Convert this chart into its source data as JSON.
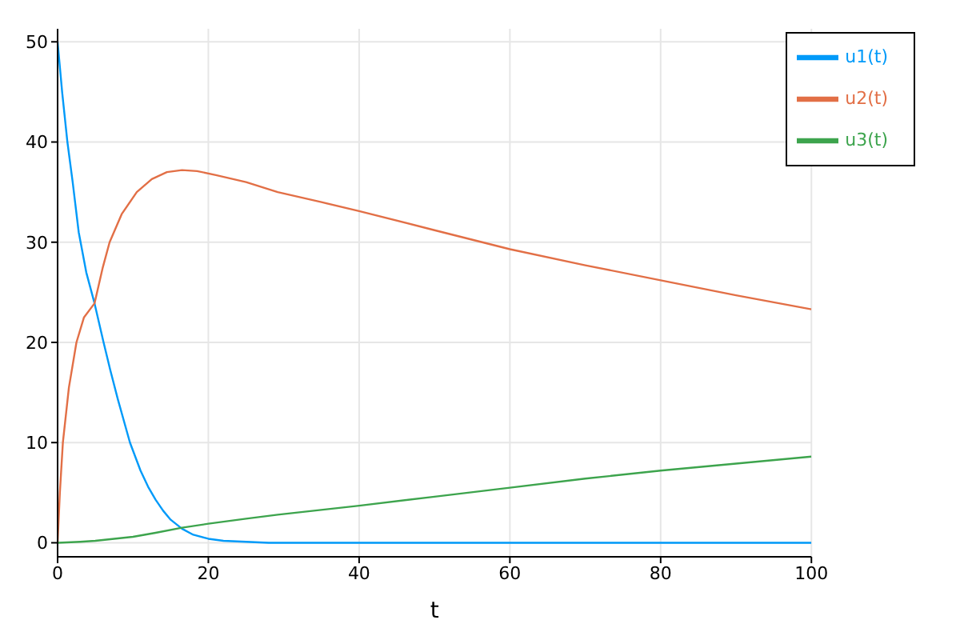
{
  "chart_data": {
    "type": "line",
    "xlabel": "t",
    "xlim": [
      0,
      100
    ],
    "xticks": [
      0,
      20,
      40,
      60,
      80,
      100
    ],
    "ylim": [
      -1.4,
      51.3
    ],
    "yticks": [
      0,
      10,
      20,
      30,
      40,
      50
    ],
    "grid": true,
    "legend": "top right",
    "marker": "none",
    "line_style": "solid",
    "series": [
      {
        "name": "u1(t)",
        "color": "#009af9",
        "x": [
          0,
          0.6,
          1.3,
          2,
          2.8,
          3.8,
          4.9,
          6.1,
          7,
          8,
          9.6,
          11,
          12,
          13,
          14,
          15,
          16.5,
          18,
          20,
          22,
          25,
          28,
          32,
          40,
          60,
          80,
          100
        ],
        "values": [
          50,
          45,
          40,
          36,
          31,
          27,
          23.9,
          20,
          17.2,
          14.3,
          10,
          7.2,
          5.6,
          4.3,
          3.2,
          2.3,
          1.4,
          0.8,
          0.4,
          0.2,
          0.1,
          0,
          0,
          0,
          0,
          0,
          0
        ]
      },
      {
        "name": "u2(t)",
        "color": "#e26f46",
        "x": [
          0,
          0.3,
          0.7,
          1.5,
          2.5,
          3.5,
          4.9,
          6,
          6.9,
          8.5,
          10.5,
          12.5,
          14.5,
          16.5,
          18.5,
          21,
          25,
          29.2,
          35,
          40,
          50,
          60,
          70,
          80,
          90,
          100
        ],
        "values": [
          0,
          5,
          10,
          15.5,
          20,
          22.5,
          23.9,
          27.5,
          30,
          32.8,
          35,
          36.3,
          37,
          37.2,
          37.1,
          36.7,
          36,
          35,
          34,
          33.1,
          31.2,
          29.3,
          27.7,
          26.2,
          24.7,
          23.3
        ]
      },
      {
        "name": "u3(t)",
        "color": "#3da44d",
        "x": [
          0,
          3,
          5,
          7.5,
          10,
          13,
          16.5,
          20,
          25,
          29.2,
          40,
          50,
          60,
          70,
          80,
          90,
          100
        ],
        "values": [
          0,
          0.1,
          0.2,
          0.4,
          0.6,
          1,
          1.5,
          1.9,
          2.4,
          2.8,
          3.7,
          4.6,
          5.5,
          6.4,
          7.2,
          7.9,
          8.6
        ]
      }
    ]
  }
}
